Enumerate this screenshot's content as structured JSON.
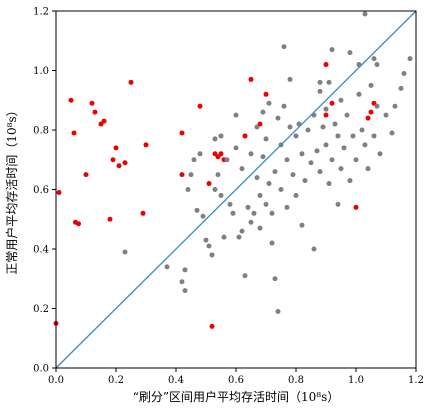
{
  "chart_data": {
    "type": "scatter",
    "title": "",
    "xlabel": "“刷分”区间用户平均存活时间（10⁸s）",
    "ylabel": "正常用户平均存活时间（10⁸s）",
    "xlim": [
      0,
      1.2
    ],
    "ylim": [
      0,
      1.2
    ],
    "xticks": [
      "0.0",
      "0.2",
      "0.4",
      "0.6",
      "0.8",
      "1.0",
      "1.2"
    ],
    "yticks": [
      "0.0",
      "0.2",
      "0.4",
      "0.6",
      "0.8",
      "1.0",
      "1.2"
    ],
    "grid": false,
    "legend": "none",
    "colors": {
      "red": "#ee0000",
      "gray": "#808080",
      "line": "#3a8cc8",
      "axis": "#000000"
    },
    "reference_line": {
      "from": [
        0,
        0
      ],
      "to": [
        1.2,
        1.2
      ]
    },
    "series": [
      {
        "color": "#ee0000",
        "points": [
          [
            0.0,
            0.15
          ],
          [
            0.01,
            0.59
          ],
          [
            0.05,
            0.9
          ],
          [
            0.06,
            0.79
          ],
          [
            0.065,
            0.49
          ],
          [
            0.075,
            0.485
          ],
          [
            0.1,
            0.65
          ],
          [
            0.12,
            0.89
          ],
          [
            0.13,
            0.86
          ],
          [
            0.15,
            0.82
          ],
          [
            0.16,
            0.83
          ],
          [
            0.18,
            0.5
          ],
          [
            0.19,
            0.7
          ],
          [
            0.2,
            0.74
          ],
          [
            0.21,
            0.68
          ],
          [
            0.23,
            0.69
          ],
          [
            0.25,
            0.96
          ],
          [
            0.29,
            0.52
          ],
          [
            0.3,
            0.75
          ],
          [
            0.42,
            0.79
          ],
          [
            0.42,
            0.65
          ],
          [
            0.48,
            0.88
          ],
          [
            0.51,
            0.62
          ],
          [
            0.52,
            0.14
          ],
          [
            0.53,
            0.72
          ],
          [
            0.54,
            0.71
          ],
          [
            0.55,
            0.72
          ],
          [
            0.56,
            0.7
          ],
          [
            0.63,
            0.78
          ],
          [
            0.65,
            0.97
          ],
          [
            0.68,
            0.82
          ],
          [
            0.7,
            0.92
          ],
          [
            0.9,
            0.85
          ],
          [
            0.9,
            1.02
          ],
          [
            0.92,
            0.89
          ],
          [
            1.0,
            0.54
          ],
          [
            1.04,
            0.84
          ],
          [
            1.05,
            0.86
          ],
          [
            1.06,
            0.89
          ]
        ]
      },
      {
        "color": "#808080",
        "points": [
          [
            0.23,
            0.39
          ],
          [
            0.37,
            0.34
          ],
          [
            0.42,
            0.29
          ],
          [
            0.43,
            0.26
          ],
          [
            0.43,
            0.33
          ],
          [
            0.44,
            0.6
          ],
          [
            0.45,
            0.65
          ],
          [
            0.46,
            0.7
          ],
          [
            0.47,
            0.53
          ],
          [
            0.48,
            0.72
          ],
          [
            0.49,
            0.51
          ],
          [
            0.5,
            0.43
          ],
          [
            0.51,
            0.41
          ],
          [
            0.52,
            0.38
          ],
          [
            0.53,
            0.77
          ],
          [
            0.53,
            0.6
          ],
          [
            0.54,
            0.65
          ],
          [
            0.55,
            0.78
          ],
          [
            0.55,
            0.58
          ],
          [
            0.56,
            0.44
          ],
          [
            0.57,
            0.7
          ],
          [
            0.58,
            0.55
          ],
          [
            0.59,
            0.52
          ],
          [
            0.6,
            0.85
          ],
          [
            0.6,
            0.74
          ],
          [
            0.61,
            0.44
          ],
          [
            0.62,
            0.46
          ],
          [
            0.62,
            0.67
          ],
          [
            0.63,
            0.31
          ],
          [
            0.64,
            0.54
          ],
          [
            0.65,
            0.49
          ],
          [
            0.65,
            0.72
          ],
          [
            0.66,
            0.52
          ],
          [
            0.67,
            0.81
          ],
          [
            0.67,
            0.64
          ],
          [
            0.68,
            0.58
          ],
          [
            0.68,
            0.47
          ],
          [
            0.69,
            0.71
          ],
          [
            0.69,
            0.86
          ],
          [
            0.7,
            0.55
          ],
          [
            0.7,
            0.77
          ],
          [
            0.71,
            0.89
          ],
          [
            0.71,
            0.62
          ],
          [
            0.72,
            0.42
          ],
          [
            0.72,
            0.52
          ],
          [
            0.73,
            0.3
          ],
          [
            0.73,
            0.66
          ],
          [
            0.74,
            0.19
          ],
          [
            0.74,
            0.84
          ],
          [
            0.75,
            0.75
          ],
          [
            0.75,
            0.6
          ],
          [
            0.76,
            1.08
          ],
          [
            0.76,
            0.88
          ],
          [
            0.77,
            0.7
          ],
          [
            0.77,
            0.54
          ],
          [
            0.78,
            0.97
          ],
          [
            0.78,
            0.81
          ],
          [
            0.79,
            0.65
          ],
          [
            0.8,
            0.78
          ],
          [
            0.8,
            0.58
          ],
          [
            0.81,
            0.82
          ],
          [
            0.82,
            0.72
          ],
          [
            0.82,
            0.48
          ],
          [
            0.83,
            0.63
          ],
          [
            0.84,
            0.8
          ],
          [
            0.85,
            0.69
          ],
          [
            0.86,
            0.85
          ],
          [
            0.86,
            0.4
          ],
          [
            0.87,
            0.73
          ],
          [
            0.88,
            0.66
          ],
          [
            0.88,
            0.93
          ],
          [
            0.89,
            0.81
          ],
          [
            0.9,
            0.75
          ],
          [
            0.9,
            0.87
          ],
          [
            0.91,
            0.96
          ],
          [
            0.91,
            0.62
          ],
          [
            0.92,
            1.07
          ],
          [
            0.92,
            0.7
          ],
          [
            0.93,
            0.82
          ],
          [
            0.94,
            0.55
          ],
          [
            0.94,
            0.78
          ],
          [
            0.95,
            0.9
          ],
          [
            0.95,
            0.67
          ],
          [
            0.96,
            0.74
          ],
          [
            0.97,
            0.85
          ],
          [
            0.98,
            0.63
          ],
          [
            0.98,
            1.06
          ],
          [
            0.99,
            0.78
          ],
          [
            1.0,
            0.7
          ],
          [
            1.01,
            0.92
          ],
          [
            1.02,
            0.8
          ],
          [
            1.03,
            0.75
          ],
          [
            1.03,
            1.19
          ],
          [
            1.04,
            0.67
          ],
          [
            1.05,
            0.95
          ],
          [
            1.06,
            1.04
          ],
          [
            1.06,
            0.78
          ],
          [
            1.07,
            0.88
          ],
          [
            1.07,
            1.02
          ],
          [
            1.08,
            0.72
          ],
          [
            1.1,
            0.85
          ],
          [
            1.12,
            0.79
          ],
          [
            1.13,
            0.88
          ],
          [
            1.15,
            0.94
          ],
          [
            1.16,
            0.99
          ],
          [
            1.18,
            1.04
          ],
          [
            1.01,
            1.02
          ],
          [
            0.88,
            0.96
          ]
        ]
      }
    ]
  }
}
